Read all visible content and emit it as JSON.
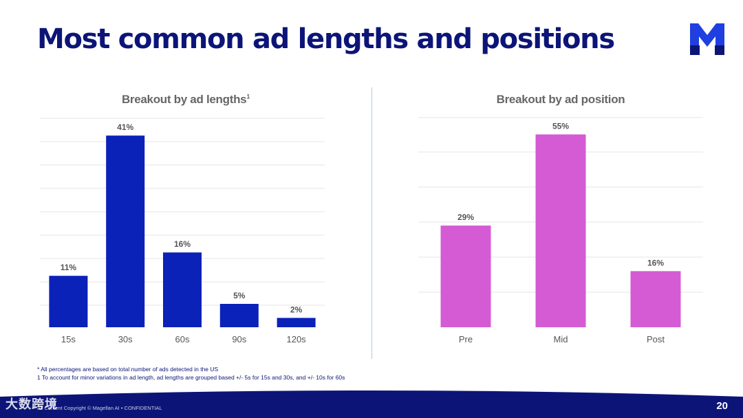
{
  "header": {
    "title": "Most common ad lengths and positions"
  },
  "logo": {
    "name": "magellan-logo",
    "letter": "M"
  },
  "charts": {
    "lengths": {
      "title": "Breakout by ad lengths",
      "title_superscript": "1"
    },
    "positions": {
      "title": "Breakout by ad position"
    }
  },
  "chart_data": [
    {
      "type": "bar",
      "title": "Breakout by ad lengths",
      "categories": [
        "15s",
        "30s",
        "60s",
        "90s",
        "120s"
      ],
      "values": [
        11,
        41,
        16,
        5,
        2
      ],
      "value_labels": [
        "11%",
        "41%",
        "16%",
        "5%",
        "2%"
      ],
      "ylim": [
        0,
        45
      ],
      "grid": true,
      "color": "#0a22b8"
    },
    {
      "type": "bar",
      "title": "Breakout by ad position",
      "categories": [
        "Pre",
        "Mid",
        "Post"
      ],
      "values": [
        29,
        55,
        16
      ],
      "value_labels": [
        "29%",
        "55%",
        "16%"
      ],
      "ylim": [
        0,
        60
      ],
      "grid": true,
      "color": "#d45bd3"
    }
  ],
  "footnotes": {
    "line1": "* All percentages are based on total number of ads detected in the US",
    "line2": "1 To account for minor variations in ad length, ad lengths are grouped based +/- 5s for 15s and 30s, and +/- 10s for 60s"
  },
  "footer": {
    "copyright": "All Content Copyright © Magellan AI • CONFIDENTIAL",
    "page_number": "20",
    "watermark": "大数跨境"
  },
  "colors": {
    "title": "#0c1577",
    "footer_band": "#0c1577",
    "lengths_bar": "#0a22b8",
    "positions_bar": "#d45bd3"
  }
}
